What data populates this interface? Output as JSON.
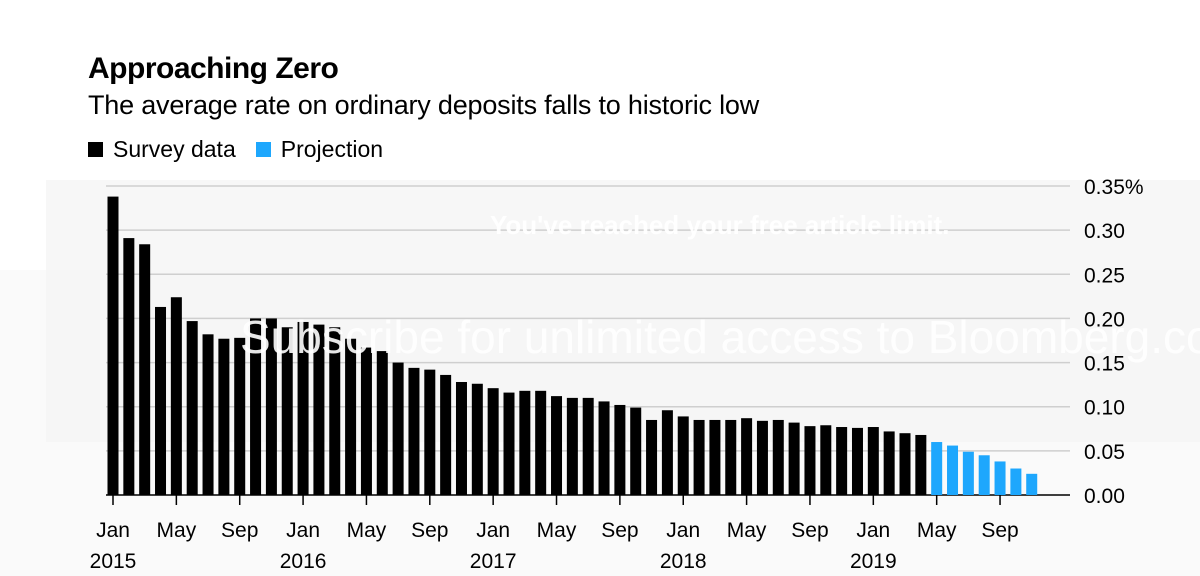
{
  "title": "Approaching Zero",
  "subtitle": "The average rate on ordinary deposits falls to historic low",
  "legend": [
    {
      "label": "Survey data",
      "color": "#000000"
    },
    {
      "label": "Projection",
      "color": "#1ea7fd"
    }
  ],
  "overlay": {
    "limit_text": "You've reached your free article limit.",
    "subscribe_text": "Subscribe for unlimited access to Bloomberg.com"
  },
  "chart_data": {
    "type": "bar",
    "title": "Approaching Zero",
    "subtitle": "The average rate on ordinary deposits falls to historic low",
    "xlabel": "",
    "ylabel": "",
    "ylim": [
      0,
      0.35
    ],
    "y_ticks": [
      0,
      0.05,
      0.1,
      0.15,
      0.2,
      0.25,
      0.3,
      0.35
    ],
    "y_tick_labels": [
      "0.00",
      "0.05",
      "0.10",
      "0.15",
      "0.20",
      "0.25",
      "0.30",
      "0.35%"
    ],
    "x_tick_labels": [
      {
        "index": 0,
        "month": "Jan",
        "year": "2015"
      },
      {
        "index": 4,
        "month": "May",
        "year": ""
      },
      {
        "index": 8,
        "month": "Sep",
        "year": ""
      },
      {
        "index": 12,
        "month": "Jan",
        "year": "2016"
      },
      {
        "index": 16,
        "month": "May",
        "year": ""
      },
      {
        "index": 20,
        "month": "Sep",
        "year": ""
      },
      {
        "index": 24,
        "month": "Jan",
        "year": "2017"
      },
      {
        "index": 28,
        "month": "May",
        "year": ""
      },
      {
        "index": 32,
        "month": "Sep",
        "year": ""
      },
      {
        "index": 36,
        "month": "Jan",
        "year": "2018"
      },
      {
        "index": 40,
        "month": "May",
        "year": ""
      },
      {
        "index": 44,
        "month": "Sep",
        "year": ""
      },
      {
        "index": 48,
        "month": "Jan",
        "year": "2019"
      },
      {
        "index": 52,
        "month": "May",
        "year": ""
      },
      {
        "index": 56,
        "month": "Sep",
        "year": ""
      }
    ],
    "series": [
      {
        "name": "Survey data",
        "color": "#000000",
        "start_index": 0,
        "values": [
          0.338,
          0.291,
          0.284,
          0.213,
          0.224,
          0.197,
          0.182,
          0.177,
          0.178,
          0.2,
          0.2,
          0.19,
          0.196,
          0.193,
          0.19,
          0.177,
          0.167,
          0.163,
          0.15,
          0.144,
          0.142,
          0.136,
          0.128,
          0.126,
          0.121,
          0.116,
          0.118,
          0.118,
          0.112,
          0.11,
          0.11,
          0.106,
          0.102,
          0.099,
          0.085,
          0.096,
          0.089,
          0.085,
          0.085,
          0.085,
          0.087,
          0.084,
          0.085,
          0.082,
          0.078,
          0.079,
          0.077,
          0.076,
          0.077,
          0.072,
          0.07,
          0.068
        ]
      },
      {
        "name": "Projection",
        "color": "#1ea7fd",
        "start_index": 52,
        "values": [
          0.06,
          0.056,
          0.049,
          0.045,
          0.038,
          0.03,
          0.024
        ]
      }
    ]
  }
}
